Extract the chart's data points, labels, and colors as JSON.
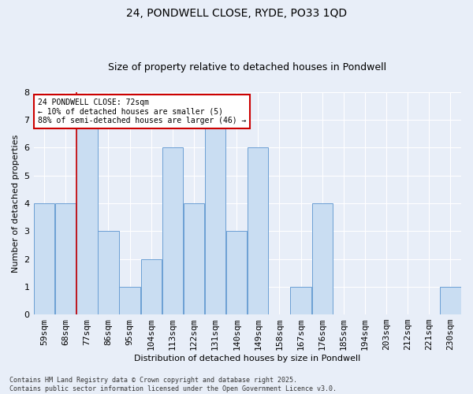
{
  "title1": "24, PONDWELL CLOSE, RYDE, PO33 1QD",
  "title2": "Size of property relative to detached houses in Pondwell",
  "xlabel": "Distribution of detached houses by size in Pondwell",
  "ylabel": "Number of detached properties",
  "categories": [
    "59sqm",
    "68sqm",
    "77sqm",
    "86sqm",
    "95sqm",
    "104sqm",
    "113sqm",
    "122sqm",
    "131sqm",
    "140sqm",
    "149sqm",
    "158sqm",
    "167sqm",
    "176sqm",
    "185sqm",
    "194sqm",
    "203sqm",
    "212sqm",
    "221sqm",
    "230sqm"
  ],
  "values": [
    4,
    4,
    7,
    3,
    1,
    2,
    6,
    4,
    7,
    3,
    6,
    0,
    1,
    4,
    0,
    0,
    0,
    0,
    0,
    1
  ],
  "bar_color": "#c9ddf2",
  "bar_edge_color": "#6b9fd4",
  "background_color": "#e8eef8",
  "grid_color": "#ffffff",
  "property_line_color": "#cc0000",
  "property_line_x": 1.5,
  "annotation_text": "24 PONDWELL CLOSE: 72sqm\n← 10% of detached houses are smaller (5)\n88% of semi-detached houses are larger (46) →",
  "annotation_box_color": "#cc0000",
  "footer_text": "Contains HM Land Registry data © Crown copyright and database right 2025.\nContains public sector information licensed under the Open Government Licence v3.0.",
  "ylim": [
    0,
    8
  ],
  "yticks": [
    0,
    1,
    2,
    3,
    4,
    5,
    6,
    7,
    8
  ],
  "title1_fontsize": 10,
  "title2_fontsize": 9,
  "xlabel_fontsize": 8,
  "ylabel_fontsize": 8,
  "tick_fontsize": 8,
  "annot_fontsize": 7,
  "footer_fontsize": 6
}
